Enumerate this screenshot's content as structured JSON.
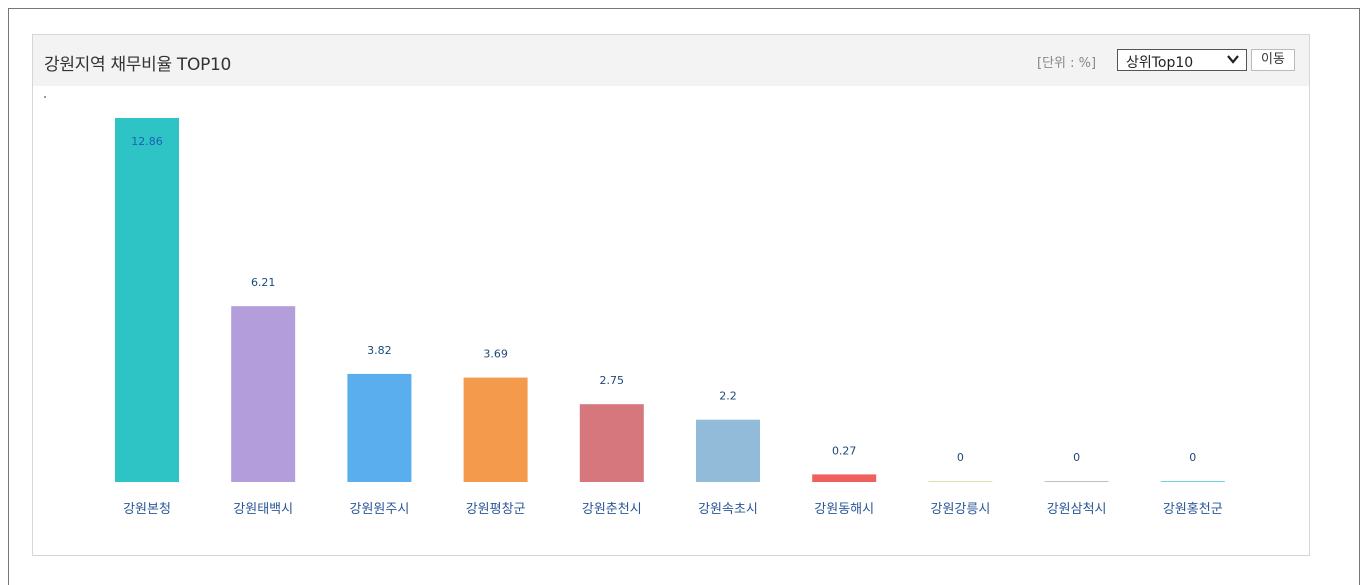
{
  "header": {
    "title": "강원지역 채무비율 TOP10",
    "unit": "[단위 : %]",
    "select_value": "상위Top10",
    "go_label": "이동"
  },
  "chart_data": {
    "type": "bar",
    "title": "강원지역 채무비율 TOP10",
    "ylabel": "",
    "xlabel": "",
    "ylim": [
      0,
      12.86
    ],
    "grid": false,
    "categories": [
      "강원본청",
      "강원태백시",
      "강원원주시",
      "강원평창군",
      "강원춘천시",
      "강원속초시",
      "강원동해시",
      "강원강릉시",
      "강원삼척시",
      "강원홍천군"
    ],
    "values": [
      12.86,
      6.21,
      3.82,
      3.69,
      2.75,
      2.2,
      0.27,
      0,
      0,
      0
    ],
    "value_labels": [
      "12.86",
      "6.21",
      "3.82",
      "3.69",
      "2.75",
      "2.2",
      "0.27",
      "0",
      "0",
      "0"
    ],
    "colors": [
      "#2ec4c6",
      "#b39ddb",
      "#5aaeed",
      "#f39a4d",
      "#d5777c",
      "#91bbd9",
      "#f0605d",
      "#d7e3a8",
      "#bfbfbf",
      "#6dd5d8"
    ]
  }
}
